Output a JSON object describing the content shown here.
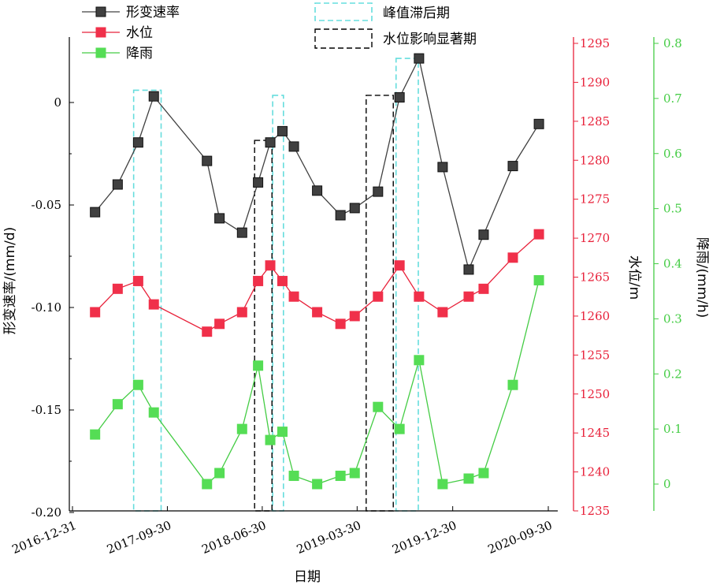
{
  "chart_data": {
    "type": "line",
    "xlabel": "日期",
    "x_ticks": [
      "2016-12-31",
      "2017-09-30",
      "2018-06-30",
      "2019-03-30",
      "2019-12-30",
      "2020-09-30"
    ],
    "x_range": [
      "2016-12-31",
      "2020-09-30"
    ],
    "axes": {
      "left": {
        "label": "形变速率/(mm/d)",
        "range": [
          -0.2,
          0.025
        ],
        "ticks": [
          "0",
          "-0.05",
          "-0.10",
          "-0.15",
          "-0.20"
        ],
        "tick_values": [
          0,
          -0.05,
          -0.1,
          -0.15,
          -0.2
        ],
        "color": "#000000"
      },
      "right1": {
        "label": "水位/m",
        "range": [
          1235,
          1296
        ],
        "ticks": [
          "1295",
          "1290",
          "1285",
          "1280",
          "1275",
          "1270",
          "1265",
          "1260",
          "1255",
          "1250",
          "1245",
          "1240",
          "1235"
        ],
        "tick_values": [
          1295,
          1290,
          1285,
          1280,
          1275,
          1270,
          1265,
          1260,
          1255,
          1250,
          1245,
          1240,
          1235
        ],
        "color": "#e8213a"
      },
      "right2": {
        "label": "降雨/(mm/h)",
        "range": [
          -0.05,
          0.8
        ],
        "ticks": [
          "0.8",
          "0.7",
          "0.6",
          "0.5",
          "0.4",
          "0.3",
          "0.2",
          "0.1",
          "0"
        ],
        "tick_values": [
          0.8,
          0.7,
          0.6,
          0.5,
          0.4,
          0.3,
          0.2,
          0.1,
          0
        ],
        "color": "#44cc44"
      }
    },
    "series": [
      {
        "name": "形变速率",
        "axis": "left",
        "color": "#404040",
        "marker_fill": "#404040",
        "points": [
          [
            "2017-03-06",
            -0.0535
          ],
          [
            "2017-05-10",
            -0.04
          ],
          [
            "2017-07-08",
            -0.0195
          ],
          [
            "2017-08-22",
            0.003
          ],
          [
            "2018-01-22",
            -0.0285
          ],
          [
            "2018-02-27",
            -0.0565
          ],
          [
            "2018-05-03",
            -0.0635
          ],
          [
            "2018-06-18",
            -0.039
          ],
          [
            "2018-07-23",
            -0.0195
          ],
          [
            "2018-08-27",
            -0.014
          ],
          [
            "2018-09-29",
            -0.0215
          ],
          [
            "2018-12-05",
            -0.043
          ],
          [
            "2019-02-10",
            -0.055
          ],
          [
            "2019-03-23",
            -0.0515
          ],
          [
            "2019-05-29",
            -0.0435
          ],
          [
            "2019-07-30",
            0.0025
          ],
          [
            "2019-09-24",
            0.0215
          ],
          [
            "2019-12-01",
            -0.0315
          ],
          [
            "2020-02-14",
            -0.0815
          ],
          [
            "2020-03-28",
            -0.0645
          ],
          [
            "2020-06-20",
            -0.031
          ],
          [
            "2020-09-03",
            -0.0105
          ]
        ]
      },
      {
        "name": "水位",
        "axis": "right1",
        "color": "#e8213a",
        "marker_fill": "#f0304a",
        "points": [
          [
            "2017-03-06",
            1260.5
          ],
          [
            "2017-05-10",
            1263.5
          ],
          [
            "2017-07-08",
            1264.5
          ],
          [
            "2017-08-22",
            1261.5
          ],
          [
            "2018-01-22",
            1258
          ],
          [
            "2018-02-27",
            1259
          ],
          [
            "2018-05-03",
            1260.5
          ],
          [
            "2018-06-18",
            1264.5
          ],
          [
            "2018-07-23",
            1266.5
          ],
          [
            "2018-08-27",
            1264.5
          ],
          [
            "2018-09-29",
            1262.5
          ],
          [
            "2018-12-05",
            1260.5
          ],
          [
            "2019-02-10",
            1259
          ],
          [
            "2019-03-23",
            1260
          ],
          [
            "2019-05-29",
            1262.5
          ],
          [
            "2019-07-30",
            1266.5
          ],
          [
            "2019-09-24",
            1262.5
          ],
          [
            "2019-12-01",
            1260.5
          ],
          [
            "2020-02-14",
            1262.5
          ],
          [
            "2020-03-28",
            1263.5
          ],
          [
            "2020-06-20",
            1267.5
          ],
          [
            "2020-09-03",
            1270.5
          ]
        ]
      },
      {
        "name": "降雨",
        "axis": "right2",
        "color": "#44cc44",
        "marker_fill": "#55dd55",
        "points": [
          [
            "2017-03-06",
            0.09
          ],
          [
            "2017-05-10",
            0.145
          ],
          [
            "2017-07-08",
            0.18
          ],
          [
            "2017-08-22",
            0.13
          ],
          [
            "2018-01-22",
            0.0
          ],
          [
            "2018-02-27",
            0.02
          ],
          [
            "2018-05-03",
            0.1
          ],
          [
            "2018-06-18",
            0.215
          ],
          [
            "2018-07-23",
            0.08
          ],
          [
            "2018-08-27",
            0.095
          ],
          [
            "2018-09-29",
            0.015
          ],
          [
            "2018-12-05",
            0.0
          ],
          [
            "2019-02-10",
            0.015
          ],
          [
            "2019-03-23",
            0.02
          ],
          [
            "2019-05-29",
            0.14
          ],
          [
            "2019-07-30",
            0.1
          ],
          [
            "2019-09-24",
            0.225
          ],
          [
            "2019-12-01",
            0.0
          ],
          [
            "2020-02-14",
            0.01
          ],
          [
            "2020-03-28",
            0.02
          ],
          [
            "2020-06-20",
            0.18
          ],
          [
            "2020-09-03",
            0.37
          ]
        ]
      }
    ],
    "periods": [
      {
        "name": "峰值滞后期",
        "style": "cyan-dashed",
        "color": "#66dddd",
        "spans": [
          [
            "2017-06-25",
            "2017-09-12"
          ],
          [
            "2018-07-30",
            "2018-08-30"
          ],
          [
            "2019-07-20",
            "2019-09-22"
          ]
        ]
      },
      {
        "name": "水位影响显著期",
        "style": "black-dashed",
        "color": "#000000",
        "spans": [
          [
            "2018-06-08",
            "2018-07-28"
          ],
          [
            "2019-04-25",
            "2019-07-12"
          ]
        ]
      }
    ],
    "period_tops": {
      "cyan": [
        0.006,
        0.0035,
        0.0215
      ],
      "black": [
        -0.0185,
        0.0035
      ]
    },
    "grid": false,
    "legend": {
      "left_placement": "top-left",
      "right_placement": "top-center"
    }
  }
}
